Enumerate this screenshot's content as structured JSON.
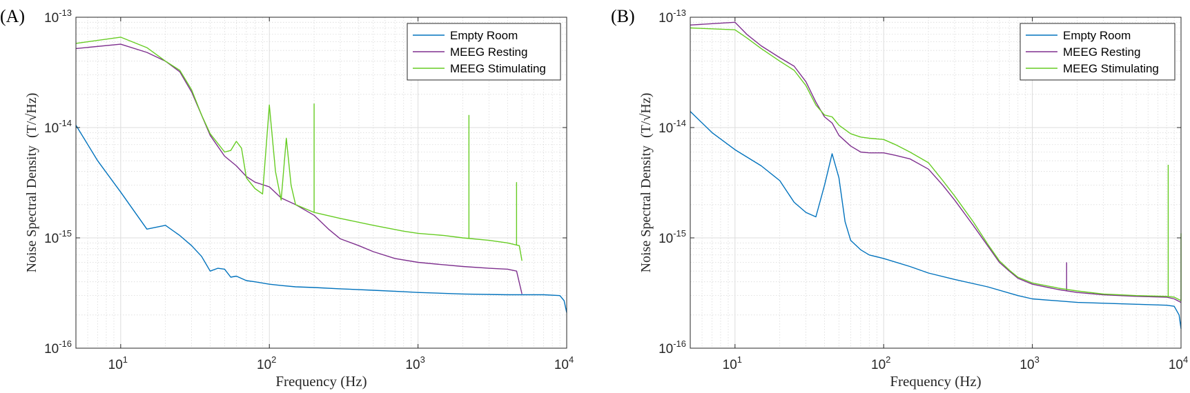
{
  "chart_data": [
    {
      "type": "line",
      "panel_label": "(A)",
      "xlabel": "Frequency (Hz)",
      "ylabel": "Noise Spectral Density",
      "ylabel_unit": "(T/√Hz)",
      "xscale": "log",
      "yscale": "log",
      "xlim": [
        5,
        10000
      ],
      "ylim": [
        1e-16,
        1e-13
      ],
      "x_ticks": [
        {
          "v": 10,
          "b": "10",
          "e": "1"
        },
        {
          "v": 100,
          "b": "10",
          "e": "2"
        },
        {
          "v": 1000,
          "b": "10",
          "e": "3"
        },
        {
          "v": 10000,
          "b": "10",
          "e": "4"
        }
      ],
      "y_ticks": [
        {
          "v": 1e-16,
          "b": "10",
          "e": "-16"
        },
        {
          "v": 1e-15,
          "b": "10",
          "e": "-15"
        },
        {
          "v": 1e-14,
          "b": "10",
          "e": "-14"
        },
        {
          "v": 1e-13,
          "b": "10",
          "e": "-13"
        }
      ],
      "grid": true,
      "legend_position": "top-right",
      "series": [
        {
          "name": "Empty Room",
          "color": "#0072BD",
          "points": [
            [
              5,
              1.05e-14
            ],
            [
              7,
              5e-15
            ],
            [
              10,
              2.6e-15
            ],
            [
              15,
              1.2e-15
            ],
            [
              20,
              1.3e-15
            ],
            [
              25,
              1.05e-15
            ],
            [
              30,
              8.5e-16
            ],
            [
              35,
              6.8e-16
            ],
            [
              40,
              5e-16
            ],
            [
              45,
              5.3e-16
            ],
            [
              50,
              5.2e-16
            ],
            [
              55,
              4.4e-16
            ],
            [
              60,
              4.5e-16
            ],
            [
              70,
              4.1e-16
            ],
            [
              80,
              4e-16
            ],
            [
              100,
              3.8e-16
            ],
            [
              120,
              3.7e-16
            ],
            [
              150,
              3.6e-16
            ],
            [
              200,
              3.55e-16
            ],
            [
              300,
              3.45e-16
            ],
            [
              500,
              3.35e-16
            ],
            [
              800,
              3.25e-16
            ],
            [
              1000,
              3.2e-16
            ],
            [
              2000,
              3.1e-16
            ],
            [
              4000,
              3.05e-16
            ],
            [
              7000,
              3.05e-16
            ],
            [
              9000,
              3e-16
            ],
            [
              9600,
              2.7e-16
            ],
            [
              10000,
              2.1e-16
            ]
          ]
        },
        {
          "name": "MEEG Resting",
          "color": "#7E2F8E",
          "points": [
            [
              5,
              5.2e-14
            ],
            [
              10,
              5.7e-14
            ],
            [
              15,
              4.8e-14
            ],
            [
              20,
              4e-14
            ],
            [
              25,
              3.2e-14
            ],
            [
              30,
              2.1e-14
            ],
            [
              35,
              1.3e-14
            ],
            [
              40,
              8.5e-15
            ],
            [
              50,
              5.5e-15
            ],
            [
              60,
              4.5e-15
            ],
            [
              70,
              3.6e-15
            ],
            [
              80,
              3.2e-15
            ],
            [
              100,
              2.9e-15
            ],
            [
              120,
              2.3e-15
            ],
            [
              150,
              2e-15
            ],
            [
              200,
              1.6e-15
            ],
            [
              250,
              1.2e-15
            ],
            [
              300,
              9.8e-16
            ],
            [
              400,
              8.5e-16
            ],
            [
              500,
              7.5e-16
            ],
            [
              700,
              6.5e-16
            ],
            [
              1000,
              6e-16
            ],
            [
              1500,
              5.7e-16
            ],
            [
              2000,
              5.5e-16
            ],
            [
              3000,
              5.3e-16
            ],
            [
              4000,
              5.2e-16
            ],
            [
              4600,
              5e-16
            ],
            [
              5000,
              3.1e-16
            ]
          ]
        },
        {
          "name": "MEEG Stimulating",
          "color": "#66CC22",
          "points": [
            [
              5,
              5.8e-14
            ],
            [
              10,
              6.6e-14
            ],
            [
              15,
              5.3e-14
            ],
            [
              20,
              4e-14
            ],
            [
              25,
              3.3e-14
            ],
            [
              30,
              2.2e-14
            ],
            [
              35,
              1.3e-14
            ],
            [
              40,
              8.8e-15
            ],
            [
              50,
              6e-15
            ],
            [
              55,
              6.2e-15
            ],
            [
              60,
              7.5e-15
            ],
            [
              65,
              6.5e-15
            ],
            [
              70,
              3.5e-15
            ],
            [
              80,
              2.8e-15
            ],
            [
              90,
              2.5e-15
            ],
            [
              100,
              1.6e-14
            ],
            [
              110,
              4e-15
            ],
            [
              120,
              2.2e-15
            ],
            [
              130,
              8e-15
            ],
            [
              140,
              3e-15
            ],
            [
              150,
              2e-15
            ],
            [
              200,
              1.7e-15
            ],
            [
              300,
              1.5e-15
            ],
            [
              500,
              1.3e-15
            ],
            [
              800,
              1.15e-15
            ],
            [
              1000,
              1.1e-15
            ],
            [
              1500,
              1.05e-15
            ],
            [
              2000,
              1e-15
            ],
            [
              3000,
              9.5e-16
            ],
            [
              4000,
              9e-16
            ],
            [
              4800,
              8.5e-16
            ],
            [
              5000,
              6.2e-16
            ]
          ],
          "spikes": [
            [
              200,
              1.65e-14
            ],
            [
              2200,
              1.3e-14
            ],
            [
              4600,
              3.2e-15
            ]
          ]
        }
      ]
    },
    {
      "type": "line",
      "panel_label": "(B)",
      "xlabel": "Frequency (Hz)",
      "ylabel": "Noise Spectral Density",
      "ylabel_unit": "(T/√Hz)",
      "xscale": "log",
      "yscale": "log",
      "xlim": [
        5,
        10000
      ],
      "ylim": [
        1e-16,
        1e-13
      ],
      "x_ticks": [
        {
          "v": 10,
          "b": "10",
          "e": "1"
        },
        {
          "v": 100,
          "b": "10",
          "e": "2"
        },
        {
          "v": 1000,
          "b": "10",
          "e": "3"
        },
        {
          "v": 10000,
          "b": "10",
          "e": "4"
        }
      ],
      "y_ticks": [
        {
          "v": 1e-16,
          "b": "10",
          "e": "-16"
        },
        {
          "v": 1e-15,
          "b": "10",
          "e": "-15"
        },
        {
          "v": 1e-14,
          "b": "10",
          "e": "-14"
        },
        {
          "v": 1e-13,
          "b": "10",
          "e": "-13"
        }
      ],
      "grid": true,
      "legend_position": "top-right",
      "series": [
        {
          "name": "Empty Room",
          "color": "#0072BD",
          "points": [
            [
              5,
              1.4e-14
            ],
            [
              7,
              9e-15
            ],
            [
              10,
              6.3e-15
            ],
            [
              15,
              4.5e-15
            ],
            [
              20,
              3.3e-15
            ],
            [
              25,
              2.1e-15
            ],
            [
              30,
              1.7e-15
            ],
            [
              35,
              1.55e-15
            ],
            [
              40,
              3e-15
            ],
            [
              45,
              5.8e-15
            ],
            [
              50,
              3.5e-15
            ],
            [
              55,
              1.4e-15
            ],
            [
              60,
              9.5e-16
            ],
            [
              70,
              7.8e-16
            ],
            [
              80,
              7e-16
            ],
            [
              100,
              6.5e-16
            ],
            [
              150,
              5.5e-16
            ],
            [
              200,
              4.8e-16
            ],
            [
              300,
              4.2e-16
            ],
            [
              500,
              3.6e-16
            ],
            [
              800,
              3e-16
            ],
            [
              1000,
              2.8e-16
            ],
            [
              2000,
              2.6e-16
            ],
            [
              5000,
              2.5e-16
            ],
            [
              8000,
              2.45e-16
            ],
            [
              9000,
              2.4e-16
            ],
            [
              9700,
              2e-16
            ],
            [
              10000,
              1.5e-16
            ]
          ]
        },
        {
          "name": "MEEG Resting",
          "color": "#7E2F8E",
          "points": [
            [
              5,
              8.5e-14
            ],
            [
              10,
              9e-14
            ],
            [
              12,
              7e-14
            ],
            [
              15,
              5.5e-14
            ],
            [
              20,
              4.3e-14
            ],
            [
              25,
              3.6e-14
            ],
            [
              30,
              2.6e-14
            ],
            [
              35,
              1.7e-14
            ],
            [
              40,
              1.25e-14
            ],
            [
              45,
              1.1e-14
            ],
            [
              50,
              8.5e-15
            ],
            [
              60,
              6.8e-15
            ],
            [
              70,
              6e-15
            ],
            [
              80,
              5.9e-15
            ],
            [
              100,
              5.9e-15
            ],
            [
              120,
              5.6e-15
            ],
            [
              150,
              5.2e-15
            ],
            [
              200,
              4.2e-15
            ],
            [
              250,
              3e-15
            ],
            [
              300,
              2.2e-15
            ],
            [
              400,
              1.3e-15
            ],
            [
              500,
              8.5e-16
            ],
            [
              600,
              6e-16
            ],
            [
              700,
              5e-16
            ],
            [
              800,
              4.3e-16
            ],
            [
              1000,
              3.8e-16
            ],
            [
              1500,
              3.4e-16
            ],
            [
              2000,
              3.2e-16
            ],
            [
              3000,
              3.05e-16
            ],
            [
              5000,
              2.95e-16
            ],
            [
              8000,
              2.9e-16
            ],
            [
              9000,
              2.8e-16
            ],
            [
              10000,
              2.6e-16
            ]
          ],
          "spikes": [
            [
              1700,
              6e-16
            ]
          ]
        },
        {
          "name": "MEEG Stimulating",
          "color": "#66CC22",
          "points": [
            [
              5,
              8e-14
            ],
            [
              10,
              7.7e-14
            ],
            [
              12,
              6.5e-14
            ],
            [
              15,
              5.2e-14
            ],
            [
              20,
              4e-14
            ],
            [
              25,
              3.3e-14
            ],
            [
              30,
              2.4e-14
            ],
            [
              35,
              1.6e-14
            ],
            [
              40,
              1.3e-14
            ],
            [
              45,
              1.25e-14
            ],
            [
              50,
              1.05e-14
            ],
            [
              60,
              8.8e-15
            ],
            [
              70,
              8.2e-15
            ],
            [
              80,
              8e-15
            ],
            [
              100,
              7.8e-15
            ],
            [
              120,
              7e-15
            ],
            [
              150,
              6e-15
            ],
            [
              200,
              4.8e-15
            ],
            [
              250,
              3.3e-15
            ],
            [
              300,
              2.4e-15
            ],
            [
              400,
              1.4e-15
            ],
            [
              500,
              8.8e-16
            ],
            [
              600,
              6.2e-16
            ],
            [
              700,
              5.1e-16
            ],
            [
              800,
              4.4e-16
            ],
            [
              1000,
              3.9e-16
            ],
            [
              1500,
              3.5e-16
            ],
            [
              2000,
              3.3e-16
            ],
            [
              3000,
              3.1e-16
            ],
            [
              5000,
              3e-16
            ],
            [
              8000,
              2.95e-16
            ],
            [
              9000,
              2.9e-16
            ],
            [
              10000,
              2.7e-16
            ]
          ],
          "spikes": [
            [
              8200,
              4.6e-15
            ],
            [
              10000,
              1.1e-15
            ]
          ]
        }
      ]
    }
  ]
}
